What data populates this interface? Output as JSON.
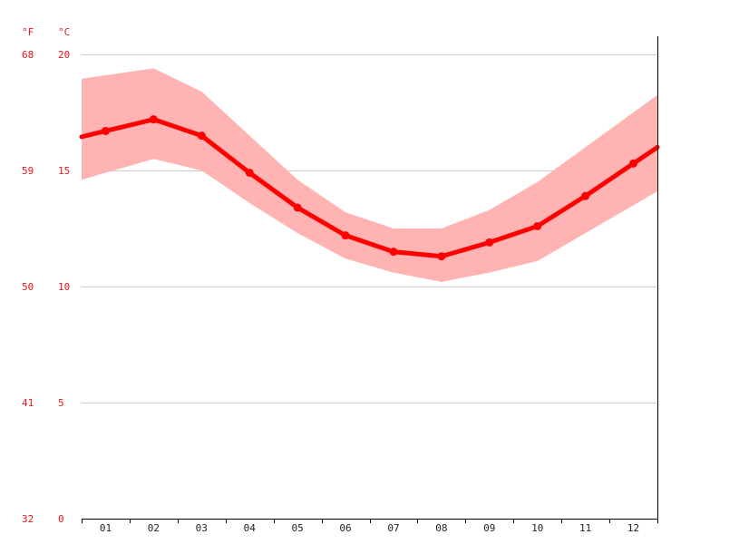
{
  "chart_data": {
    "type": "line",
    "title": "",
    "xlabel": "",
    "ylabel": "",
    "unit_left": "°F",
    "unit_right": "°C",
    "categories": [
      "01",
      "02",
      "03",
      "04",
      "05",
      "06",
      "07",
      "08",
      "09",
      "10",
      "11",
      "12"
    ],
    "series": [
      {
        "values": [
          16.7,
          17.2,
          16.5,
          14.9,
          13.4,
          12.2,
          11.5,
          11.3,
          11.9,
          12.6,
          13.9,
          15.3
        ],
        "color": "#ff0000",
        "band_high": [
          19.1,
          19.4,
          18.4,
          16.5,
          14.6,
          13.2,
          12.5,
          12.5,
          13.3,
          14.5,
          16.0,
          17.5
        ],
        "band_low": [
          14.9,
          15.5,
          15.0,
          13.6,
          12.3,
          11.2,
          10.6,
          10.2,
          10.6,
          11.1,
          12.3,
          13.5
        ],
        "band_color": "#ffb3b3"
      }
    ],
    "y_ticks_c": [
      "0",
      "5",
      "10",
      "15",
      "20"
    ],
    "y_ticks_f": [
      "32",
      "41",
      "50",
      "59",
      "68"
    ],
    "ylim": [
      0,
      20
    ],
    "grid": true,
    "legend": "none"
  }
}
